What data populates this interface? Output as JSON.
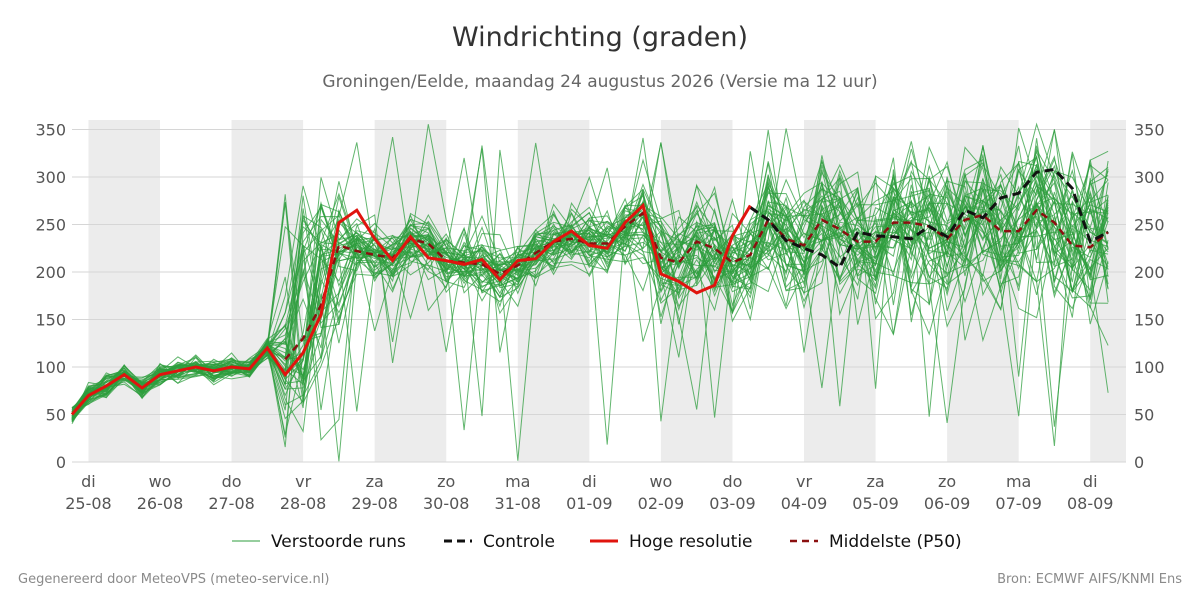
{
  "title": "Windrichting (graden)",
  "subtitle": "Groningen/Eelde, maandag 24 augustus 2026 (Versie ma 12 uur)",
  "footer_left": "Gegenereerd door MeteoVPS (meteo-service.nl)",
  "footer_right": "Bron: ECMWF AIFS/KNMI Ens",
  "colors": {
    "members": "#2e9e3e",
    "control": "#111111",
    "hires": "#e0140e",
    "median": "#8b1010",
    "weekend_band": "#ececec",
    "grid": "#d6d6d6"
  },
  "chart_data": {
    "type": "line",
    "title": "Windrichting (graden)",
    "ylabel": "",
    "ylim": [
      0,
      360
    ],
    "yticks": [
      0,
      50,
      100,
      150,
      200,
      250,
      300,
      350
    ],
    "x_unit": "days since 25-08 00:00",
    "xlim": [
      -0.23,
      14.5
    ],
    "day_labels": [
      {
        "x": 0,
        "day": "di",
        "date": "25-08"
      },
      {
        "x": 1,
        "day": "wo",
        "date": "26-08"
      },
      {
        "x": 2,
        "day": "do",
        "date": "27-08"
      },
      {
        "x": 3,
        "day": "vr",
        "date": "28-08"
      },
      {
        "x": 4,
        "day": "za",
        "date": "29-08"
      },
      {
        "x": 5,
        "day": "zo",
        "date": "30-08"
      },
      {
        "x": 6,
        "day": "ma",
        "date": "31-08"
      },
      {
        "x": 7,
        "day": "di",
        "date": "01-09"
      },
      {
        "x": 8,
        "day": "wo",
        "date": "02-09"
      },
      {
        "x": 9,
        "day": "do",
        "date": "03-09"
      },
      {
        "x": 10,
        "day": "vr",
        "date": "04-09"
      },
      {
        "x": 11,
        "day": "za",
        "date": "05-09"
      },
      {
        "x": 12,
        "day": "zo",
        "date": "06-09"
      },
      {
        "x": 13,
        "day": "ma",
        "date": "07-09"
      },
      {
        "x": 14,
        "day": "di",
        "date": "08-09"
      }
    ],
    "shaded_days": [
      [
        0,
        1
      ],
      [
        2,
        3
      ],
      [
        4,
        5
      ],
      [
        6,
        7
      ],
      [
        8,
        9
      ],
      [
        10,
        11
      ],
      [
        12,
        13
      ],
      [
        14,
        14.5
      ]
    ],
    "legend": [
      {
        "key": "members",
        "label": "Verstoorde runs"
      },
      {
        "key": "control",
        "label": "Controle"
      },
      {
        "key": "hires",
        "label": "Hoge resolutie"
      },
      {
        "key": "median",
        "label": "Middelste (P50)"
      }
    ],
    "x": [
      -0.23,
      0,
      0.25,
      0.5,
      0.75,
      1,
      1.25,
      1.5,
      1.75,
      2,
      2.25,
      2.5,
      2.75,
      3,
      3.25,
      3.5,
      3.75,
      4,
      4.25,
      4.5,
      4.75,
      5,
      5.25,
      5.5,
      5.75,
      6,
      6.25,
      6.5,
      6.75,
      7,
      7.25,
      7.5,
      7.75,
      8,
      8.25,
      8.5,
      8.75,
      9,
      9.25,
      9.5,
      9.75,
      10,
      10.25,
      10.5,
      10.75,
      11,
      11.25,
      11.5,
      11.75,
      12,
      12.25,
      12.5,
      12.75,
      13,
      13.25,
      13.5,
      13.75,
      14,
      14.25,
      14.5
    ],
    "series": [
      {
        "name": "Hoge resolutie",
        "key": "hires",
        "values": [
          50,
          70,
          80,
          92,
          78,
          92,
          96,
          100,
          96,
          100,
          98,
          120,
          92,
          115,
          155,
          252,
          265,
          235,
          212,
          237,
          215,
          212,
          208,
          213,
          192,
          212,
          214,
          232,
          243,
          228,
          225,
          252,
          270,
          198,
          190,
          178,
          186,
          238,
          270,
          null,
          null,
          null,
          null,
          null,
          null,
          null,
          null,
          null,
          null,
          null,
          null,
          null,
          null,
          null,
          null,
          null,
          null,
          null,
          null,
          null
        ]
      },
      {
        "name": "Controle",
        "key": "control",
        "values": [
          null,
          null,
          null,
          null,
          null,
          null,
          null,
          null,
          null,
          null,
          null,
          null,
          null,
          null,
          null,
          null,
          null,
          null,
          null,
          null,
          null,
          null,
          null,
          null,
          null,
          null,
          null,
          null,
          null,
          null,
          null,
          null,
          null,
          null,
          null,
          null,
          null,
          null,
          268,
          255,
          233,
          225,
          218,
          205,
          242,
          238,
          237,
          235,
          248,
          237,
          265,
          257,
          278,
          283,
          305,
          308,
          288,
          232,
          242,
          null
        ]
      },
      {
        "name": "Middelste (P50)",
        "key": "median",
        "values": [
          null,
          null,
          null,
          null,
          null,
          null,
          null,
          null,
          null,
          null,
          null,
          null,
          108,
          130,
          165,
          228,
          222,
          218,
          215,
          235,
          230,
          212,
          210,
          208,
          198,
          207,
          220,
          232,
          235,
          230,
          230,
          248,
          262,
          215,
          210,
          232,
          225,
          210,
          218,
          255,
          235,
          228,
          255,
          245,
          232,
          232,
          252,
          252,
          248,
          235,
          255,
          260,
          243,
          243,
          265,
          252,
          228,
          226,
          242,
          null
        ]
      }
    ],
    "members_count": 50
  }
}
